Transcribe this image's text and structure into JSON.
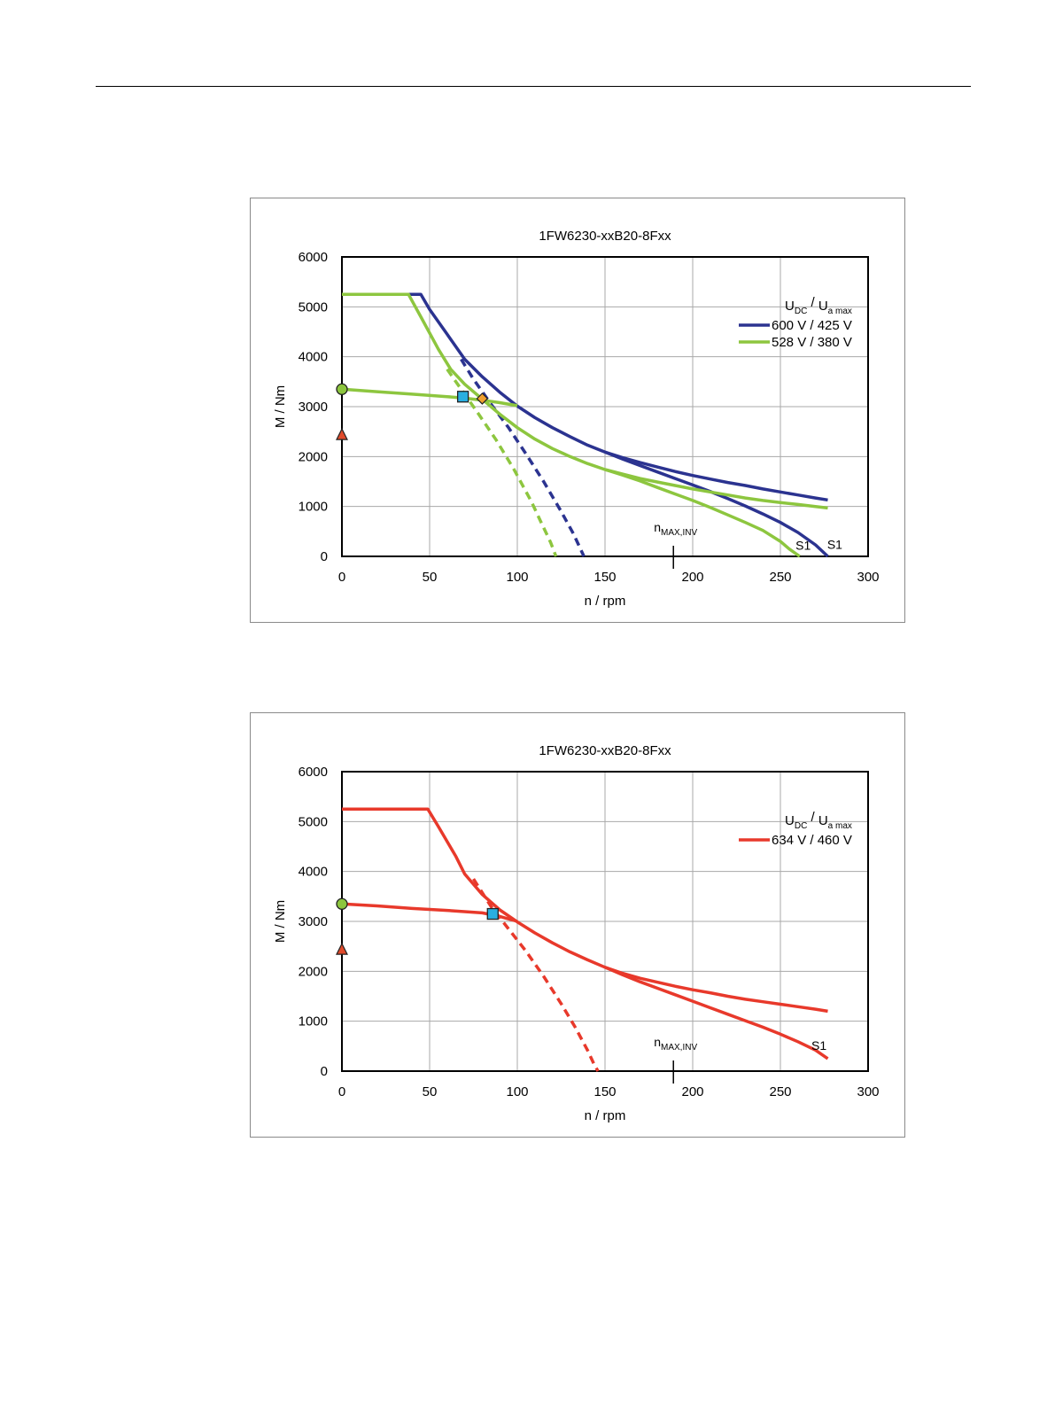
{
  "chart_data": [
    {
      "type": "line",
      "title": "1FW6230-xxB20-8Fxx",
      "xlabel": "n / rpm",
      "ylabel": "M / Nm",
      "xlim": [
        0,
        300
      ],
      "ylim": [
        0,
        6000
      ],
      "xticks": [
        0,
        50,
        100,
        150,
        200,
        250,
        300
      ],
      "yticks": [
        0,
        1000,
        2000,
        3000,
        4000,
        5000,
        6000
      ],
      "grid": true,
      "legend_position": "top-right",
      "legend_header": {
        "main1": "U",
        "sub1": "DC",
        "sep": "/",
        "main2": "U",
        "sub2": "a max"
      },
      "nmax_marker": {
        "x": 189,
        "main": "n",
        "sub": "MAX,INV"
      },
      "s1_labels": [
        {
          "text": "S1",
          "x": 263,
          "y": 130,
          "color": "#000000"
        },
        {
          "text": "S1",
          "x": 281,
          "y": 150,
          "color": "#000000"
        }
      ],
      "series": [
        {
          "name": "600 V / 425 V",
          "color": "#2b3390",
          "in_legend": true,
          "style": "solid",
          "x": [
            0,
            45,
            50,
            60,
            70,
            80,
            90,
            100,
            110,
            120,
            130,
            140,
            150,
            160,
            170,
            180,
            190,
            200,
            210,
            220,
            230,
            240,
            250,
            260,
            270,
            277
          ],
          "y": [
            5250,
            5250,
            4950,
            4450,
            3950,
            3600,
            3290,
            3010,
            2780,
            2580,
            2400,
            2230,
            2090,
            1950,
            1820,
            1690,
            1560,
            1430,
            1300,
            1160,
            1010,
            850,
            680,
            480,
            230,
            0
          ]
        },
        {
          "name": "600 V / 425 V",
          "color": "#2b3390",
          "in_legend": false,
          "style": "solid",
          "x": [
            150,
            160,
            170,
            180,
            190,
            200,
            210,
            220,
            230,
            240,
            250,
            260,
            270,
            277
          ],
          "y": [
            2090,
            1980,
            1880,
            1790,
            1700,
            1620,
            1550,
            1480,
            1420,
            1350,
            1290,
            1230,
            1170,
            1130
          ]
        },
        {
          "name": "600 V / 425 V",
          "color": "#2b3390",
          "in_legend": false,
          "style": "dashed",
          "x": [
            68,
            75,
            85,
            95,
            105,
            115,
            125,
            132,
            138
          ],
          "y": [
            3950,
            3550,
            3050,
            2580,
            2050,
            1500,
            900,
            450,
            0
          ]
        },
        {
          "name": "528 V / 380 V",
          "color": "#8dc63f",
          "in_legend": true,
          "style": "solid",
          "x": [
            0,
            38,
            45,
            55,
            62,
            70,
            80,
            90,
            100,
            110,
            120,
            130,
            140,
            150,
            160,
            170,
            180,
            190,
            200,
            210,
            220,
            230,
            240,
            250,
            255,
            261
          ],
          "y": [
            5250,
            5250,
            4800,
            4150,
            3750,
            3450,
            3150,
            2850,
            2580,
            2350,
            2160,
            2000,
            1860,
            1740,
            1630,
            1510,
            1380,
            1250,
            1120,
            980,
            830,
            680,
            520,
            300,
            150,
            0
          ]
        },
        {
          "name": "528 V / 380 V",
          "color": "#8dc63f",
          "in_legend": false,
          "style": "solid",
          "x": [
            150,
            160,
            170,
            180,
            190,
            200,
            210,
            220,
            230,
            240,
            250,
            260,
            270,
            277
          ],
          "y": [
            1740,
            1650,
            1560,
            1490,
            1420,
            1350,
            1290,
            1230,
            1170,
            1120,
            1080,
            1040,
            1000,
            970
          ]
        },
        {
          "name": "528 V / 380 V",
          "color": "#8dc63f",
          "in_legend": false,
          "style": "dashed",
          "x": [
            60,
            68,
            78,
            88,
            98,
            108,
            114,
            119,
            122
          ],
          "y": [
            3750,
            3350,
            2850,
            2330,
            1750,
            1100,
            650,
            280,
            0
          ]
        },
        {
          "name": "528 V / 380 V",
          "color": "#8dc63f",
          "in_legend": false,
          "style": "solid",
          "x": [
            0,
            20,
            40,
            60,
            70,
            80,
            90,
            100
          ],
          "y": [
            3350,
            3300,
            3250,
            3200,
            3170,
            3130,
            3080,
            3020
          ]
        }
      ],
      "markers": [
        {
          "shape": "circle",
          "x": 0,
          "y": 3350,
          "color": "#8dc63f"
        },
        {
          "shape": "triangle",
          "x": 0,
          "y": 2430,
          "color": "#e04a2b"
        },
        {
          "shape": "square",
          "x": 69,
          "y": 3200,
          "color": "#29aee0"
        },
        {
          "shape": "diamond",
          "x": 80,
          "y": 3160,
          "color": "#f0a030"
        }
      ]
    },
    {
      "type": "line",
      "title": "1FW6230-xxB20-8Fxx",
      "xlabel": "n / rpm",
      "ylabel": "M / Nm",
      "xlim": [
        0,
        300
      ],
      "ylim": [
        0,
        6000
      ],
      "xticks": [
        0,
        50,
        100,
        150,
        200,
        250,
        300
      ],
      "yticks": [
        0,
        1000,
        2000,
        3000,
        4000,
        5000,
        6000
      ],
      "grid": true,
      "legend_position": "top-right",
      "legend_header": {
        "main1": "U",
        "sub1": "DC",
        "sep": "/",
        "main2": "U",
        "sub2": "a max"
      },
      "nmax_marker": {
        "x": 189,
        "main": "n",
        "sub": "MAX,INV"
      },
      "s1_labels": [
        {
          "text": "S1",
          "x": 272,
          "y": 430,
          "color": "#000000"
        }
      ],
      "series": [
        {
          "name": "634 V / 460 V",
          "color": "#e8392b",
          "in_legend": true,
          "style": "solid",
          "x": [
            0,
            49,
            55,
            60,
            65,
            70,
            80,
            90,
            100,
            110,
            120,
            130,
            140,
            150,
            160,
            170,
            180,
            190,
            200,
            210,
            220,
            230,
            240,
            250,
            260,
            270,
            277
          ],
          "y": [
            5250,
            5250,
            4900,
            4600,
            4300,
            3950,
            3540,
            3230,
            2990,
            2770,
            2570,
            2390,
            2230,
            2080,
            1930,
            1790,
            1660,
            1530,
            1400,
            1270,
            1140,
            1010,
            880,
            740,
            590,
            420,
            250
          ]
        },
        {
          "name": "634 V / 460 V",
          "color": "#e8392b",
          "in_legend": false,
          "style": "solid",
          "x": [
            150,
            160,
            170,
            180,
            190,
            200,
            210,
            220,
            230,
            240,
            250,
            260,
            270,
            277
          ],
          "y": [
            2080,
            1960,
            1860,
            1780,
            1700,
            1630,
            1570,
            1500,
            1440,
            1390,
            1340,
            1290,
            1240,
            1200
          ]
        },
        {
          "name": "634 V / 460 V",
          "color": "#e8392b",
          "in_legend": false,
          "style": "dashed",
          "x": [
            75,
            85,
            95,
            105,
            115,
            125,
            133,
            140,
            144,
            146
          ],
          "y": [
            3850,
            3300,
            2850,
            2400,
            1900,
            1350,
            880,
            420,
            120,
            0
          ]
        },
        {
          "name": "634 V / 460 V",
          "color": "#e8392b",
          "in_legend": false,
          "style": "solid",
          "x": [
            0,
            20,
            40,
            60,
            80,
            90,
            100
          ],
          "y": [
            3350,
            3310,
            3260,
            3220,
            3170,
            3100,
            3000
          ]
        }
      ],
      "markers": [
        {
          "shape": "circle",
          "x": 0,
          "y": 3350,
          "color": "#8dc63f"
        },
        {
          "shape": "triangle",
          "x": 0,
          "y": 2430,
          "color": "#e04a2b"
        },
        {
          "shape": "square",
          "x": 86,
          "y": 3150,
          "color": "#29aee0"
        }
      ]
    }
  ]
}
